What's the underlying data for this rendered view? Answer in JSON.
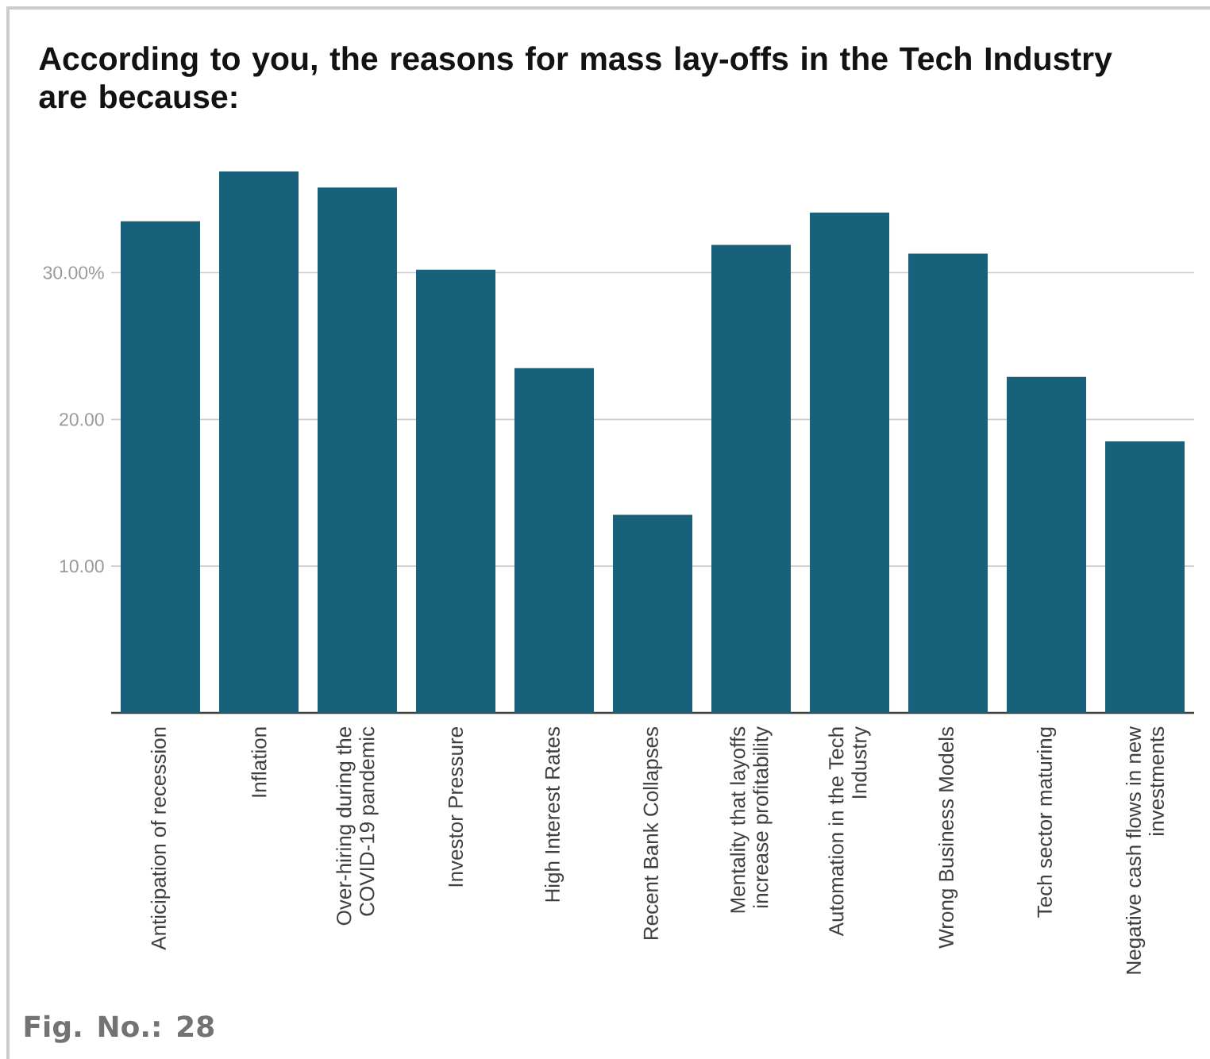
{
  "chart_data": {
    "type": "bar",
    "title": "According to you, the reasons for mass lay-offs in the Tech Industry are because:",
    "categories": [
      "Anticipation of recession",
      "Inflation",
      "Over-hiring during the COVID-19 pandemic",
      "Investor Pressure",
      "High Interest Rates",
      "Recent Bank Collapses",
      "Mentality that layoffs increase profitability",
      "Automation in the Tech Industry",
      "Wrong Business Models",
      "Tech sector maturing",
      "Negative cash flows in new investments"
    ],
    "values": [
      33.5,
      36.9,
      35.8,
      30.2,
      23.5,
      13.5,
      31.9,
      34.1,
      31.3,
      22.9,
      18.5
    ],
    "color": "#18617a",
    "ylim": [
      0,
      36.9
    ],
    "yticks": [
      {
        "value": 10,
        "label": "10.00"
      },
      {
        "value": 20,
        "label": "20.00"
      },
      {
        "value": 30,
        "label": "30.00%"
      }
    ],
    "grid": "y",
    "annotations": [
      "Fig. No.: 28"
    ]
  }
}
